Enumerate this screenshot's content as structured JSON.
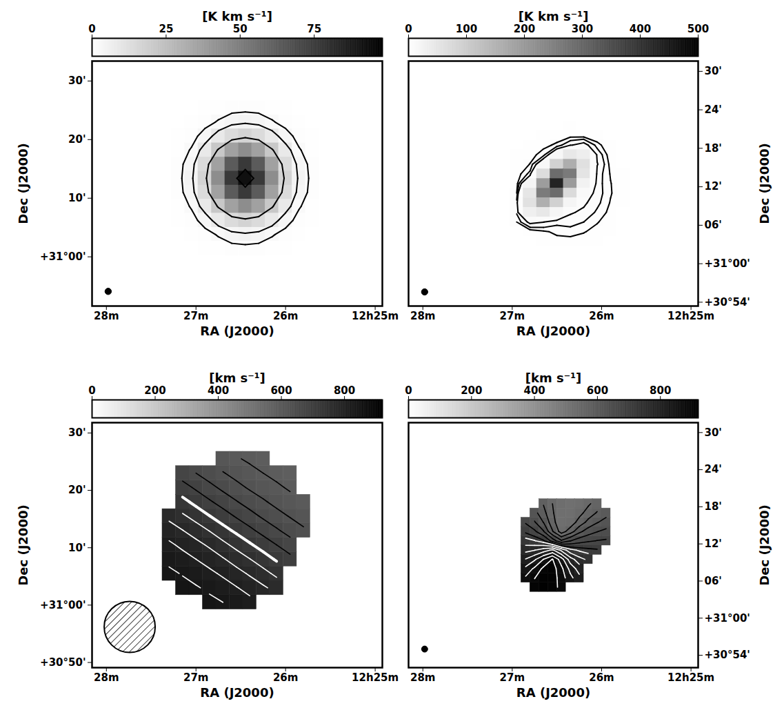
{
  "chart_data": [
    {
      "type": "heatmap",
      "xlabel": "RA (J2000)",
      "ylabel": "Dec (J2000)",
      "xlim": [
        28.16,
        24.92
      ],
      "xticks": [
        {
          "value": 28,
          "label": "28m"
        },
        {
          "value": 27,
          "label": "27m"
        },
        {
          "value": 26,
          "label": "26m"
        },
        {
          "value": 25,
          "label": "12h25m"
        }
      ],
      "ylim": [
        -8.4,
        33.4
      ],
      "yticks": [
        {
          "value": 30,
          "label": "30'"
        },
        {
          "value": 20,
          "label": "20'"
        },
        {
          "value": 10,
          "label": "10'"
        },
        {
          "value": 0,
          "label": "+31°00'"
        }
      ],
      "colorbar": {
        "label": "[K km s⁻¹]",
        "range": [
          0,
          98
        ],
        "ticks": [
          0,
          25,
          50,
          75
        ]
      },
      "x": [
        27.2,
        27.05,
        26.9,
        26.75,
        26.6,
        26.45,
        26.3,
        26.15,
        26.0,
        25.85,
        25.7
      ],
      "y": [
        25.4,
        23.0,
        20.6,
        18.2,
        15.8,
        13.4,
        11.0,
        8.6,
        6.2,
        3.8,
        1.4
      ],
      "values": [
        [
          0,
          0,
          0.2,
          0.4,
          0.8,
          0.9,
          0.8,
          0.4,
          0.2,
          0,
          0
        ],
        [
          0,
          0.2,
          0.9,
          2.3,
          4.0,
          4.8,
          4.0,
          2.3,
          0.9,
          0.2,
          0
        ],
        [
          0.2,
          0.9,
          3.3,
          8.3,
          14,
          17,
          14,
          8.3,
          3.3,
          0.9,
          0.2
        ],
        [
          0.4,
          2.3,
          8.3,
          21,
          36,
          44,
          36,
          21,
          8.3,
          2.3,
          0.4
        ],
        [
          0.8,
          4.0,
          14,
          36,
          63,
          76,
          63,
          36,
          14,
          4.0,
          0.8
        ],
        [
          0.9,
          4.8,
          17,
          44,
          76,
          92,
          76,
          44,
          17,
          4.8,
          0.9
        ],
        [
          0.8,
          4.0,
          14,
          36,
          63,
          76,
          63,
          36,
          14,
          4.0,
          0.8
        ],
        [
          0.4,
          2.3,
          8.3,
          21,
          36,
          44,
          36,
          21,
          8.3,
          2.3,
          0.4
        ],
        [
          0.2,
          0.9,
          3.3,
          8.3,
          14,
          17,
          14,
          8.3,
          3.3,
          0.9,
          0.2
        ],
        [
          0,
          0.2,
          0.9,
          2.3,
          4.0,
          4.8,
          4.0,
          2.3,
          0.9,
          0.2,
          0
        ],
        [
          0,
          0,
          0.2,
          0.4,
          0.8,
          0.9,
          0.8,
          0.4,
          0.2,
          0,
          0
        ]
      ],
      "contours": [
        {
          "levels": [
            2,
            6,
            20,
            82
          ],
          "color": "black"
        }
      ],
      "beam": {
        "x": 27.98,
        "y": -5.9,
        "diameter": 1.1,
        "marker": "filled"
      }
    },
    {
      "type": "heatmap",
      "xlabel": "RA (J2000)",
      "ylabel": "Dec (J2000)",
      "xlim": [
        28.16,
        24.92
      ],
      "xticks": [
        {
          "value": 28,
          "label": "28m"
        },
        {
          "value": 27,
          "label": "27m"
        },
        {
          "value": 26,
          "label": "26m"
        },
        {
          "value": 25,
          "label": "12h25m"
        }
      ],
      "y2lim": [
        -6.6,
        31.6
      ],
      "y2ticks": [
        {
          "value": 30,
          "label": "30'"
        },
        {
          "value": 24,
          "label": "24'"
        },
        {
          "value": 18,
          "label": "18'"
        },
        {
          "value": 12,
          "label": "12'"
        },
        {
          "value": 6,
          "label": "06'"
        },
        {
          "value": 0,
          "label": "+31°00'"
        },
        {
          "value": -6,
          "label": "+30°54'"
        }
      ],
      "colorbar": {
        "label": "[K km s⁻¹]",
        "range": [
          0,
          500
        ],
        "ticks": [
          0,
          100,
          200,
          300,
          400,
          500
        ]
      },
      "x": [
        26.95,
        26.8,
        26.65,
        26.5,
        26.35,
        26.2,
        26.05,
        25.9,
        25.75
      ],
      "y": [
        21.5,
        20,
        18.5,
        17,
        15.5,
        14,
        12.5,
        11,
        9.5,
        8,
        6.5,
        5,
        3.5
      ],
      "values": [
        [
          0.2,
          0.4,
          0.7,
          0.9,
          1.0,
          0.8,
          0.5,
          0.3,
          0.1
        ],
        [
          0.3,
          0.8,
          1.4,
          1.9,
          2.0,
          1.7,
          1.1,
          0.5,
          0.2
        ],
        [
          0.6,
          1.4,
          2.4,
          3.4,
          7.6,
          10,
          3.9,
          1.0,
          0.4
        ],
        [
          1.0,
          2.2,
          3.9,
          15,
          45,
          34,
          7.1,
          1.5,
          0.6
        ],
        [
          1.4,
          3.1,
          14,
          89,
          158,
          61,
          8.3,
          2.2,
          0.9
        ],
        [
          1.7,
          5.9,
          66,
          288,
          261,
          53,
          6.5,
          2.8,
          1.1
        ],
        [
          1.9,
          20,
          193,
          431,
          197,
          26,
          6.2,
          3.1,
          1.2
        ],
        [
          3.0,
          49,
          259,
          289,
          71,
          12,
          6.3,
          3.2,
          1.2
        ],
        [
          5.8,
          58,
          157,
          91,
          19,
          8.8,
          5.7,
          2.8,
          1.1
        ],
        [
          5.4,
          32,
          45,
          18,
          8.5,
          7.1,
          4.5,
          2.3,
          0.9
        ],
        [
          3.0,
          9.3,
          8.1,
          5.7,
          6.1,
          5.0,
          3.2,
          1.6,
          0.6
        ],
        [
          0.6,
          1.5,
          2.6,
          3.6,
          3.9,
          3.2,
          2.1,
          1.0,
          0.4
        ],
        [
          0.4,
          0.8,
          1.5,
          2.1,
          2.2,
          1.8,
          1.2,
          0.6,
          0.2
        ]
      ],
      "contours": [
        {
          "levels": [
            3,
            5,
            8
          ],
          "color": "black"
        }
      ],
      "beam": {
        "x": 27.98,
        "y": -4.4,
        "diameter": 1.0,
        "marker": "filled"
      }
    },
    {
      "type": "heatmap",
      "xlabel": "RA (J2000)",
      "ylabel": "Dec (J2000)",
      "xlim": [
        28.16,
        24.92
      ],
      "xticks": [
        {
          "value": 28,
          "label": "28m"
        },
        {
          "value": 27,
          "label": "27m"
        },
        {
          "value": 26,
          "label": "26m"
        },
        {
          "value": 25,
          "label": "12h25m"
        }
      ],
      "ylim": [
        -10.9,
        31.8
      ],
      "yticks": [
        {
          "value": 30,
          "label": "30'"
        },
        {
          "value": 20,
          "label": "20'"
        },
        {
          "value": 10,
          "label": "10'"
        },
        {
          "value": 0,
          "label": "+31°00'"
        },
        {
          "value": -10,
          "label": "+30°50'"
        }
      ],
      "colorbar": {
        "label": "[km s⁻¹]",
        "range": [
          0,
          920
        ],
        "ticks": [
          0,
          200,
          400,
          600,
          800
        ]
      },
      "x": [
        27.3,
        27.15,
        27.0,
        26.85,
        26.7,
        26.55,
        26.4,
        26.25,
        26.1,
        25.95,
        25.8
      ],
      "y": [
        25.5,
        23,
        20.5,
        18,
        15.5,
        13,
        10.5,
        8,
        5.5,
        3,
        0.5
      ],
      "values": [
        [
          null,
          null,
          null,
          null,
          609,
          599,
          591,
          583,
          null,
          null,
          null
        ],
        [
          null,
          671,
          656,
          641,
          628,
          616,
          605,
          596,
          588,
          581,
          null
        ],
        [
          null,
          698,
          681,
          665,
          649,
          635,
          622,
          611,
          601,
          592,
          null
        ],
        [
          null,
          725,
          707,
          690,
          674,
          658,
          643,
          630,
          617,
          606,
          597
        ],
        [
          768,
          751,
          735,
          717,
          700,
          683,
          667,
          651,
          637,
          624,
          612
        ],
        [
          791,
          777,
          761,
          745,
          727,
          710,
          693,
          676,
          660,
          645,
          631
        ],
        [
          812,
          799,
          786,
          771,
          754,
          737,
          720,
          703,
          686,
          669,
          null
        ],
        [
          829,
          818,
          806,
          794,
          779,
          763,
          747,
          730,
          712,
          695,
          null
        ],
        [
          842,
          834,
          824,
          813,
          801,
          787,
          772,
          756,
          739,
          null,
          null
        ],
        [
          null,
          846,
          839,
          830,
          820,
          808,
          795,
          781,
          766,
          null,
          null
        ],
        [
          null,
          null,
          null,
          844,
          836,
          826,
          815,
          null,
          null,
          null,
          null
        ]
      ],
      "contours": [
        {
          "levels": [
            596,
            626,
            656,
            686
          ],
          "color": "black"
        },
        {
          "levels": [
            716
          ],
          "color": "white",
          "line_style": "thick"
        },
        {
          "levels": [
            746,
            776,
            806,
            836
          ],
          "color": "white"
        }
      ],
      "beam": {
        "x": 27.74,
        "y": -3.8,
        "diameter": 8.9,
        "marker": "hatched"
      }
    },
    {
      "type": "heatmap",
      "xlabel": "RA (J2000)",
      "ylabel": "Dec (J2000)",
      "xlim": [
        28.16,
        24.92
      ],
      "xticks": [
        {
          "value": 28,
          "label": "28m"
        },
        {
          "value": 27,
          "label": "27m"
        },
        {
          "value": 26,
          "label": "26m"
        },
        {
          "value": 25,
          "label": "12h25m"
        }
      ],
      "y2lim": [
        -8.0,
        31.6
      ],
      "y2ticks": [
        {
          "value": 30,
          "label": "30'"
        },
        {
          "value": 24,
          "label": "24'"
        },
        {
          "value": 18,
          "label": "18'"
        },
        {
          "value": 12,
          "label": "12'"
        },
        {
          "value": 6,
          "label": "06'"
        },
        {
          "value": 0,
          "label": "+31°00'"
        },
        {
          "value": -6,
          "label": "+30°54'"
        }
      ],
      "colorbar": {
        "label": "[km s⁻¹]",
        "range": [
          0,
          920
        ],
        "ticks": [
          0,
          200,
          400,
          600,
          800
        ]
      },
      "x": [
        26.85,
        26.75,
        26.65,
        26.55,
        26.45,
        26.35,
        26.25,
        26.15,
        26.05,
        25.95
      ],
      "y": [
        18.5,
        17,
        15.5,
        14,
        12.5,
        11,
        9.5,
        8,
        6.5,
        5
      ],
      "values": [
        [
          null,
          null,
          574,
          546,
          524,
          516,
          524,
          541,
          559,
          null
        ],
        [
          null,
          616,
          586,
          550,
          521,
          518,
          536,
          559,
          579,
          595
        ],
        [
          662,
          639,
          605,
          558,
          521,
          528,
          558,
          585,
          604,
          618
        ],
        [
          691,
          672,
          639,
          579,
          532,
          561,
          598,
          621,
          635,
          644
        ],
        [
          726,
          718,
          700,
          654,
          610,
          635,
          653,
          662,
          667,
          670
        ],
        [
          767,
          775,
          791,
          812,
          769,
          726,
          711,
          703,
          699,
          null
        ],
        [
          808,
          831,
          867,
          898,
          850,
          790,
          758,
          739,
          null,
          null
        ],
        [
          844,
          872,
          903,
          911,
          874,
          826,
          792,
          null,
          null,
          null
        ],
        [
          871,
          895,
          914,
          911,
          882,
          845,
          815,
          null,
          null,
          null
        ],
        [
          null,
          907,
          916,
          909,
          886,
          null,
          null,
          null,
          null,
          null
        ]
      ],
      "contours": [
        {
          "levels": [
            546,
            576,
            606,
            636,
            666,
            696
          ],
          "color": "black"
        },
        {
          "levels": [
            716,
            746,
            776,
            806,
            836,
            866,
            896
          ],
          "color": "white"
        }
      ],
      "beam": {
        "x": 27.98,
        "y": -5.0,
        "diameter": 1.0,
        "marker": "filled"
      }
    }
  ]
}
